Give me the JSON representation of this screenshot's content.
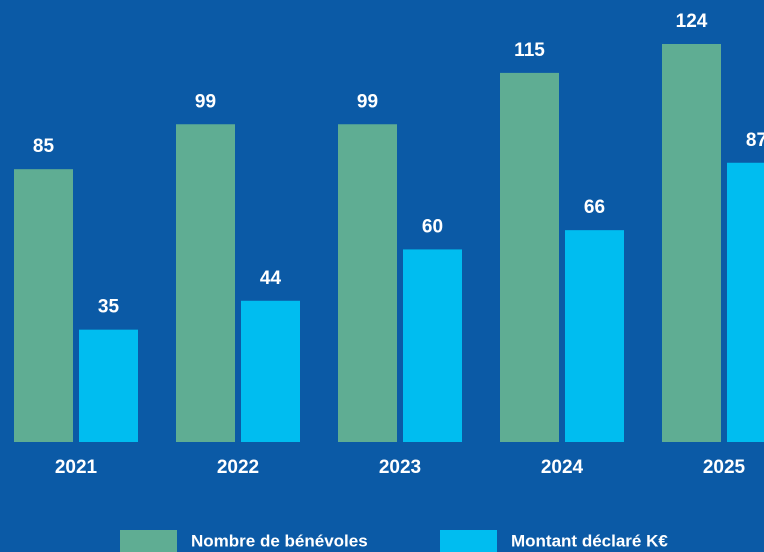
{
  "chart_data": {
    "type": "bar",
    "categories": [
      "2021",
      "2022",
      "2023",
      "2024",
      "2025"
    ],
    "series": [
      {
        "name": "Nombre de bénévoles",
        "color": "#5fad93",
        "values": [
          85,
          99,
          99,
          115,
          124
        ]
      },
      {
        "name": "Montant déclaré K€",
        "color": "#00bdf0",
        "values": [
          35,
          44,
          60,
          66,
          87
        ]
      }
    ],
    "ylim": [
      0,
      124
    ]
  }
}
